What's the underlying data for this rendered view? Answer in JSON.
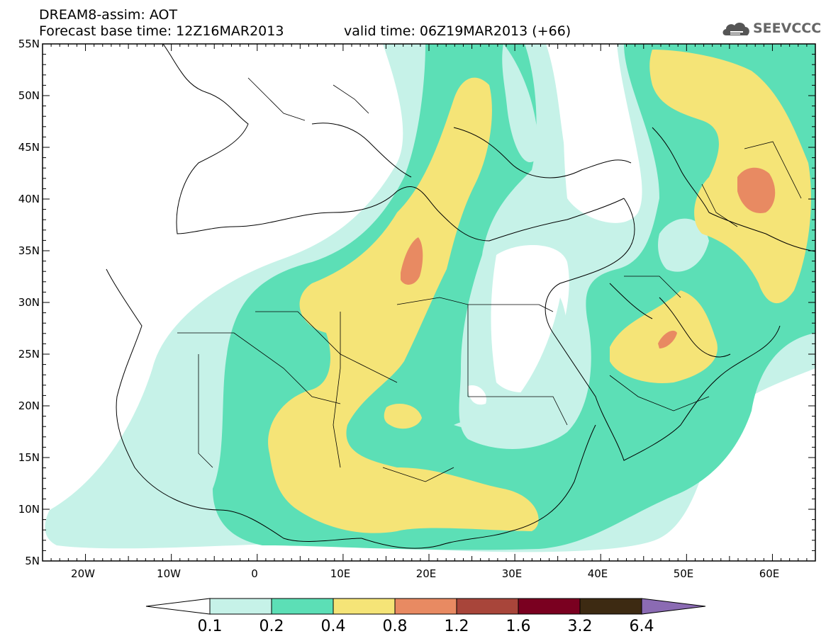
{
  "header": {
    "title": "DREAM8-assim: AOT",
    "base_time": "Forecast base time: 12Z16MAR2013",
    "valid_time": "valid time: 06Z19MAR2013 (+66)",
    "logo_text": "SEEVCCC"
  },
  "map": {
    "variable": "AOT",
    "region": {
      "lon_range": [
        -25,
        65
      ],
      "lat_range": [
        5,
        55
      ]
    },
    "lat_labels": [
      "55N",
      "50N",
      "45N",
      "40N",
      "35N",
      "30N",
      "25N",
      "20N",
      "15N",
      "10N",
      "5N"
    ],
    "lon_labels": [
      "20W",
      "10W",
      "0",
      "10E",
      "20E",
      "30E",
      "40E",
      "50E",
      "60E"
    ]
  },
  "colorbar": {
    "labels": [
      "0.1",
      "0.2",
      "0.4",
      "0.8",
      "1.2",
      "1.6",
      "3.2",
      "6.4"
    ],
    "colors": [
      "#ffffff",
      "#c6f2e8",
      "#5cdfb6",
      "#f5e477",
      "#e88a62",
      "#a8453a",
      "#7a0020",
      "#3d2a12",
      "#8b6bb3"
    ]
  }
}
